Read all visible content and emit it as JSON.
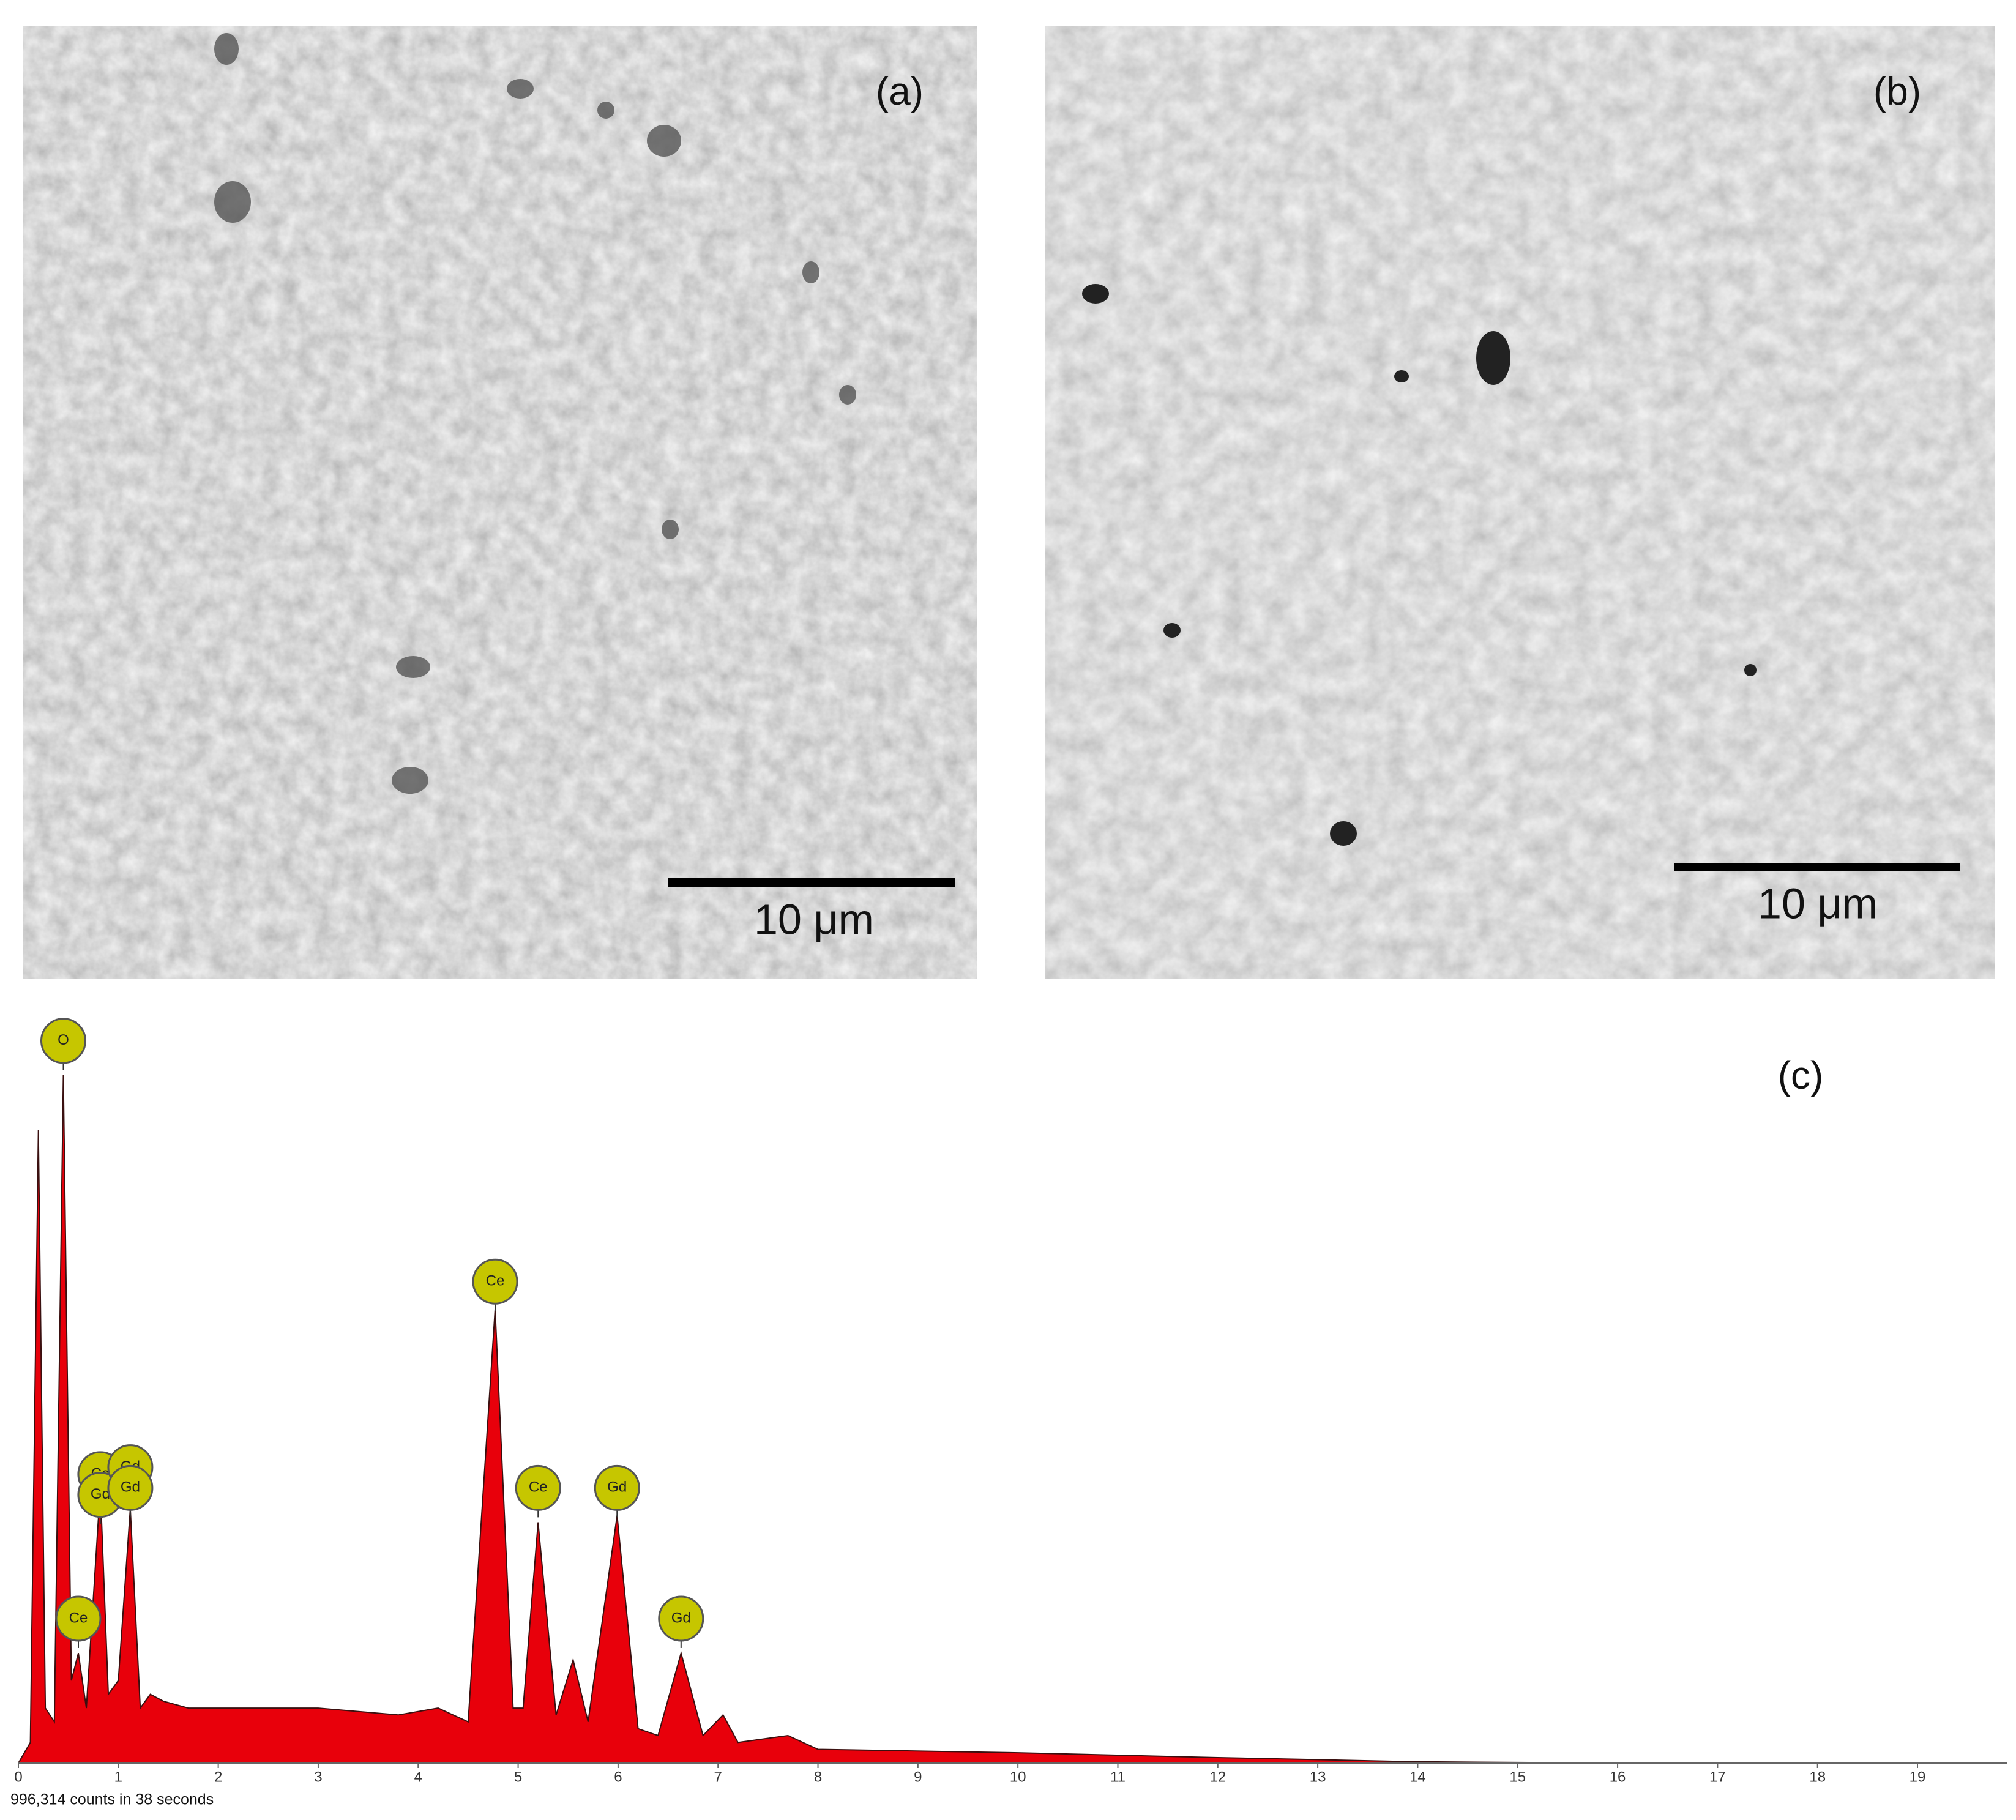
{
  "panels": [
    {
      "label": "(a)",
      "scale_bar": "10 μm"
    },
    {
      "label": "(b)",
      "scale_bar": "10 μm"
    }
  ],
  "chart_data": {
    "type": "area",
    "label": "(c)",
    "x": [
      0,
      0.12,
      0.2,
      0.27,
      0.36,
      0.45,
      0.53,
      0.6,
      0.68,
      0.82,
      0.9,
      1.0,
      1.12,
      1.22,
      1.32,
      1.45,
      1.7,
      2,
      3,
      3.8,
      4.2,
      4.5,
      4.77,
      4.95,
      5.05,
      5.2,
      5.38,
      5.55,
      5.7,
      5.99,
      6.2,
      6.4,
      6.63,
      6.85,
      7.05,
      7.2,
      7.7,
      8,
      10,
      12,
      14,
      16,
      19.9
    ],
    "values": [
      0,
      3,
      92,
      8,
      6,
      100,
      12,
      16,
      8,
      40,
      10,
      12,
      37,
      8,
      10,
      9,
      8,
      8,
      8,
      7,
      8,
      6,
      66,
      8,
      8,
      35,
      7,
      15,
      6,
      36,
      5,
      4,
      16,
      4,
      7,
      3,
      4,
      2,
      1.5,
      0.8,
      0.2,
      0,
      0
    ],
    "color": "#e8000b",
    "xlim": [
      0,
      19.9
    ],
    "xticks": [
      0,
      1,
      2,
      3,
      4,
      5,
      6,
      7,
      8,
      9,
      10,
      11,
      12,
      13,
      14,
      15,
      16,
      17,
      18,
      19
    ],
    "peak_labels": [
      {
        "text": "O",
        "x": 0.45,
        "y": 105
      },
      {
        "text": "Ce",
        "x": 0.6,
        "y": 21
      },
      {
        "text": "Ce",
        "x": 0.82,
        "y": 42
      },
      {
        "text": "Gd",
        "x": 0.82,
        "y": 39
      },
      {
        "text": "Gd",
        "x": 1.12,
        "y": 43
      },
      {
        "text": "Gd",
        "x": 1.12,
        "y": 40
      },
      {
        "text": "Ce",
        "x": 4.77,
        "y": 70
      },
      {
        "text": "Ce",
        "x": 5.2,
        "y": 40
      },
      {
        "text": "Gd",
        "x": 5.99,
        "y": 40
      },
      {
        "text": "Gd",
        "x": 6.63,
        "y": 21
      }
    ],
    "footer": "996,314 counts in 38 seconds"
  }
}
